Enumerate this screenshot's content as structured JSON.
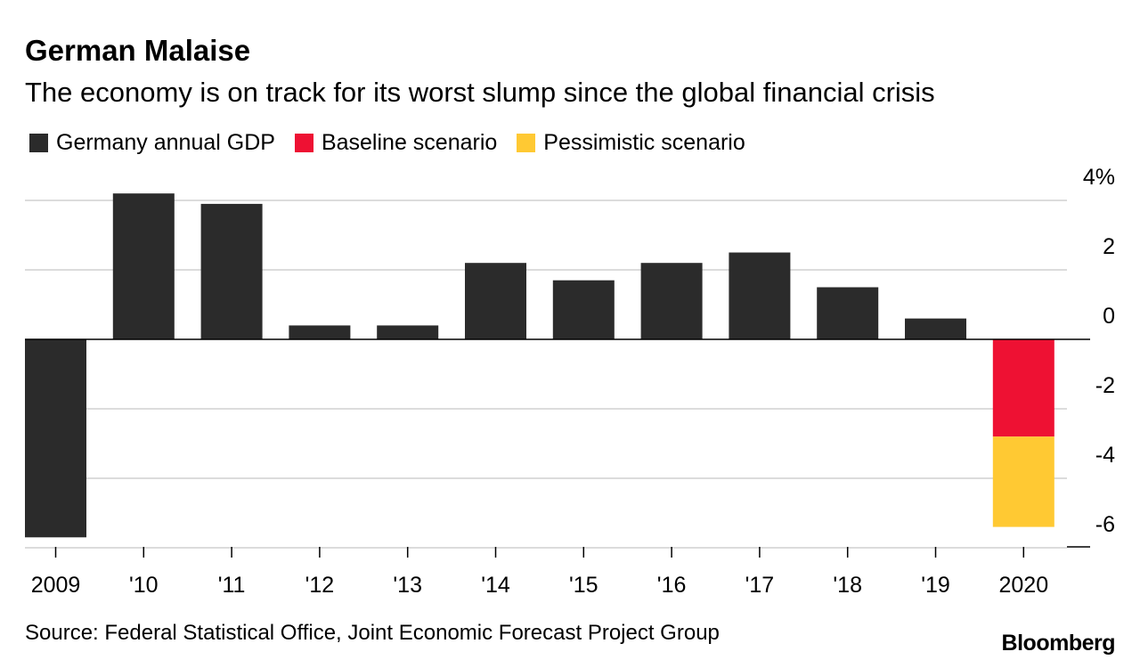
{
  "title": "German Malaise",
  "subtitle": "The economy is on track for its worst slump since the global financial crisis",
  "source": "Source: Federal Statistical Office, Joint Economic Forecast Project Group",
  "brand": "Bloomberg",
  "legend": [
    {
      "label": "Germany annual GDP",
      "color": "#2b2b2b"
    },
    {
      "label": "Baseline scenario",
      "color": "#ee1133"
    },
    {
      "label": "Pessimistic scenario",
      "color": "#ffc933"
    }
  ],
  "chart_data": {
    "type": "bar",
    "categories": [
      "2009",
      "'10",
      "'11",
      "'12",
      "'13",
      "'14",
      "'15",
      "'16",
      "'17",
      "'18",
      "'19",
      "2020"
    ],
    "series": [
      {
        "name": "Germany annual GDP",
        "values": [
          -5.7,
          4.2,
          3.9,
          0.4,
          0.4,
          2.2,
          1.7,
          2.2,
          2.5,
          1.5,
          0.6,
          null
        ]
      },
      {
        "name": "Baseline scenario",
        "values": [
          null,
          null,
          null,
          null,
          null,
          null,
          null,
          null,
          null,
          null,
          null,
          -2.8
        ]
      },
      {
        "name": "Pessimistic scenario",
        "values": [
          null,
          null,
          null,
          null,
          null,
          null,
          null,
          null,
          null,
          null,
          null,
          -5.4
        ]
      }
    ],
    "y_ticks": [
      {
        "value": 4,
        "label": "4%"
      },
      {
        "value": 2,
        "label": "2"
      },
      {
        "value": 0,
        "label": "0"
      },
      {
        "value": -2,
        "label": "-2"
      },
      {
        "value": -4,
        "label": "-4"
      },
      {
        "value": -6,
        "label": "-6"
      }
    ],
    "ylim": [
      -6,
      4
    ],
    "grid": true,
    "axis_position": "right",
    "colors": {
      "gdp": "#2b2b2b",
      "baseline": "#ee1133",
      "pessimistic": "#ffc933",
      "grid": "#d0d0d0",
      "axis": "#000000"
    }
  }
}
